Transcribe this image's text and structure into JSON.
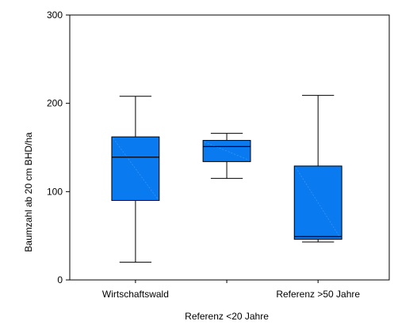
{
  "chart_data": {
    "type": "box",
    "ylabel": "Baumzahl ab 20 cm BHD/ha",
    "ylim": [
      0,
      300
    ],
    "yticks": [
      0,
      100,
      200,
      300
    ],
    "grid": false,
    "box_color": "#0a7af0",
    "categories": [
      {
        "label": "Wirtschaftswald",
        "row": "top",
        "min": 20,
        "q1": 90,
        "median": 139,
        "q3": 162,
        "max": 208
      },
      {
        "label": "Referenz <20 Jahre",
        "row": "bottom",
        "min": 115,
        "q1": 134,
        "median": 151,
        "q3": 158,
        "max": 166
      },
      {
        "label": "Referenz >50 Jahre",
        "row": "top",
        "min": 43,
        "q1": 46,
        "median": 49,
        "q3": 129,
        "max": 209
      }
    ]
  }
}
